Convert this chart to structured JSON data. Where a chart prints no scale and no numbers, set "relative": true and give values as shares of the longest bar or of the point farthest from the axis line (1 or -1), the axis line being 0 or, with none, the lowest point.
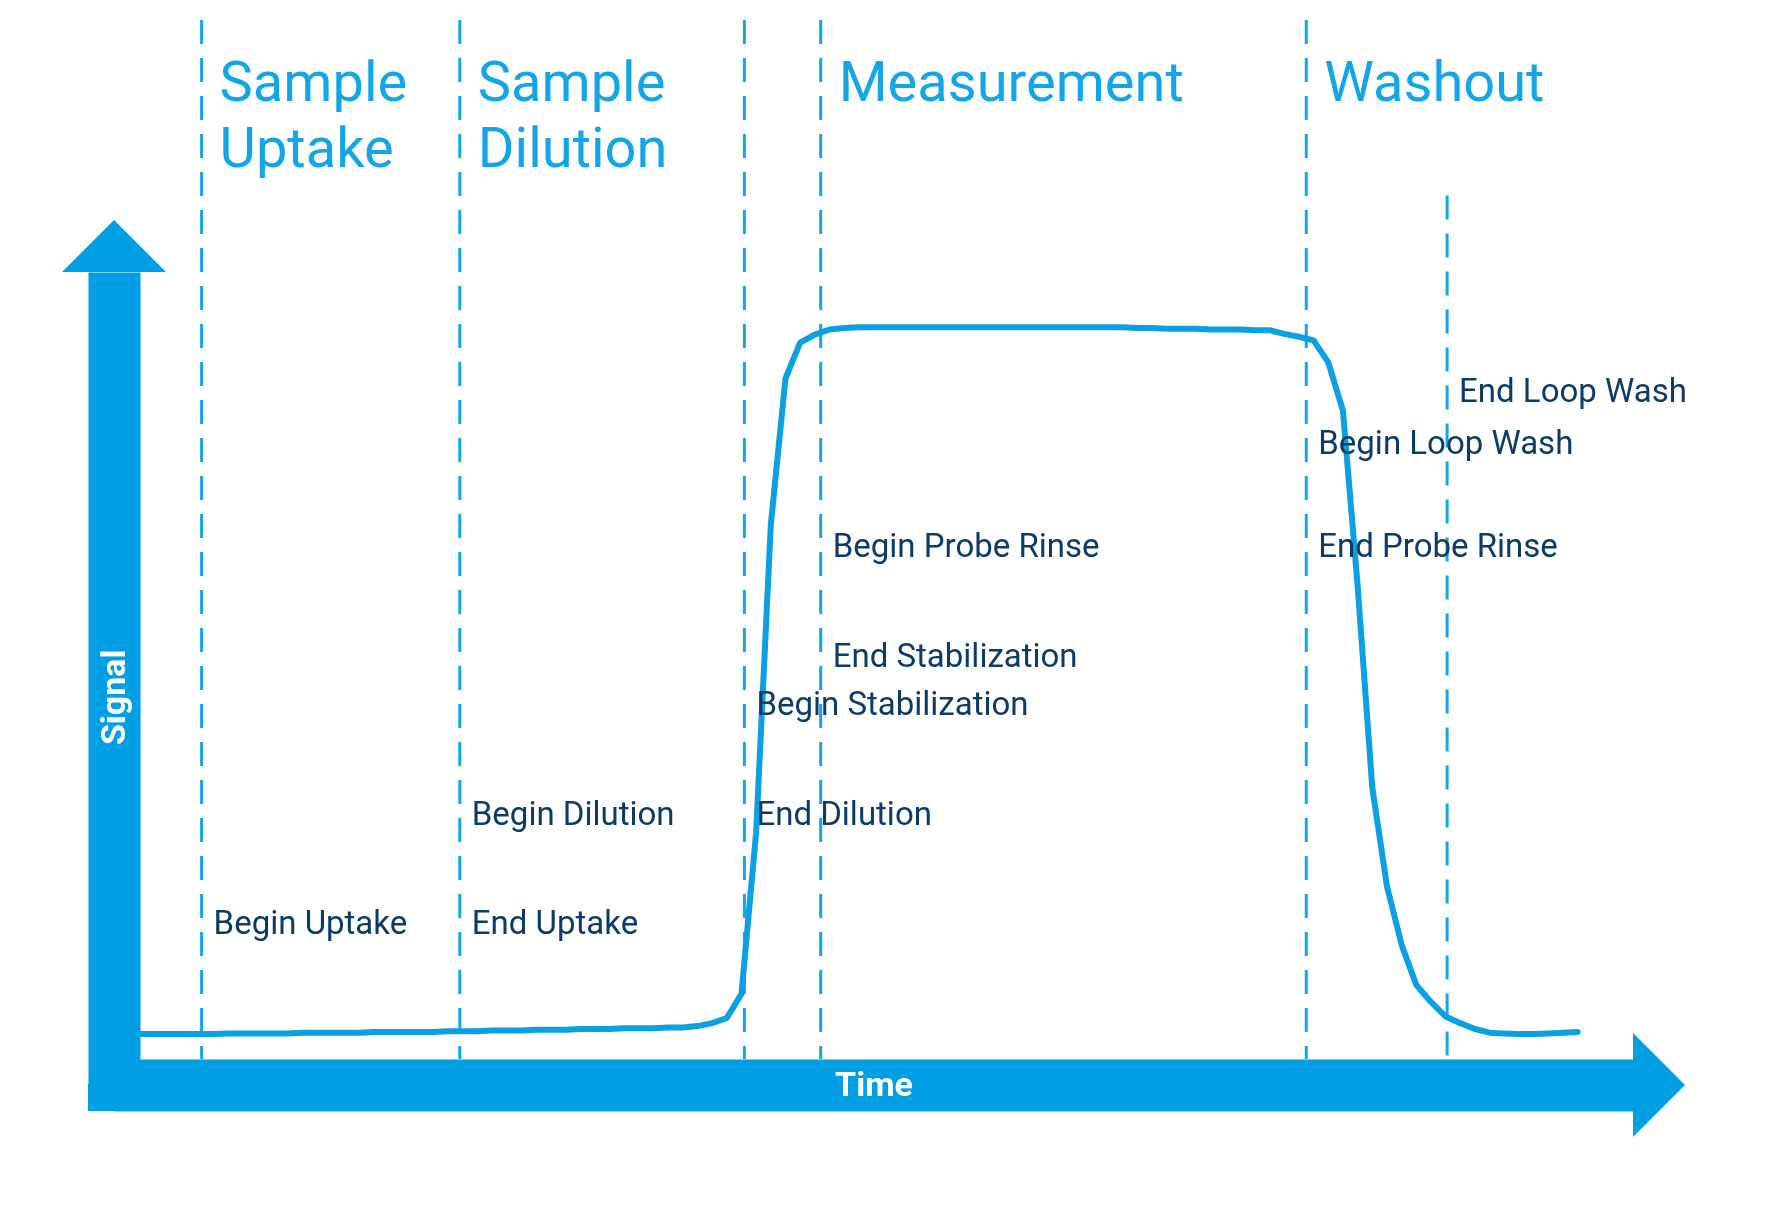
{
  "chart_data": {
    "type": "line",
    "relative": true,
    "xlabel": "Time",
    "ylabel": "Signal",
    "grid": false,
    "marker": "none",
    "line_style": "solid",
    "categories": [
      null,
      null,
      null,
      null,
      null,
      null,
      null,
      null,
      null,
      null,
      null,
      null,
      null,
      null,
      null,
      null,
      null,
      null,
      null,
      null,
      null,
      null,
      null,
      null,
      null,
      null,
      null,
      null,
      null,
      null,
      null,
      null,
      null,
      null,
      null,
      null,
      null,
      null,
      null,
      null,
      null,
      null,
      null,
      null,
      null,
      null,
      null,
      null,
      null,
      null,
      null,
      null,
      null,
      null,
      null,
      null,
      null,
      null,
      null,
      null,
      null,
      null,
      null,
      null,
      null,
      null,
      null,
      null,
      null,
      null,
      null,
      null,
      null,
      null,
      null,
      null,
      null,
      null,
      null,
      null,
      null,
      null,
      null,
      null,
      null,
      null,
      null,
      null,
      null,
      null,
      null,
      null,
      null,
      null,
      null,
      null,
      null,
      null,
      null
    ],
    "series": [
      {
        "color": "#0aa0e2",
        "values": [
          0.034,
          0.034,
          0.034,
          0.034,
          0.034,
          0.034,
          0.035,
          0.035,
          0.035,
          0.035,
          0.035,
          0.036,
          0.036,
          0.036,
          0.036,
          0.036,
          0.037,
          0.037,
          0.037,
          0.037,
          0.037,
          0.038,
          0.038,
          0.038,
          0.039,
          0.039,
          0.039,
          0.04,
          0.04,
          0.04,
          0.041,
          0.041,
          0.041,
          0.042,
          0.042,
          0.042,
          0.043,
          0.043,
          0.045,
          0.049,
          0.056,
          0.089,
          0.31,
          0.73,
          0.93,
          0.979,
          0.99,
          0.997,
          0.999,
          1,
          1,
          1,
          1,
          1,
          1,
          1,
          1,
          1,
          1,
          1,
          1,
          1,
          1,
          1,
          1,
          1,
          1,
          1,
          0.999,
          0.999,
          0.998,
          0.998,
          0.998,
          0.997,
          0.997,
          0.997,
          0.996,
          0.996,
          0.991,
          0.987,
          0.982,
          0.952,
          0.886,
          0.647,
          0.371,
          0.236,
          0.156,
          0.101,
          0.078,
          0.058,
          0.049,
          0.041,
          0.036,
          0.035,
          0.034,
          0.034,
          0.035,
          0.036,
          0.037
        ]
      }
    ],
    "annotations": [
      "Sample Uptake",
      "Sample Dilution",
      "Measurement",
      "Washout",
      "Begin Uptake",
      "End Uptake",
      "Begin Dilution",
      "End Dilution",
      "Begin Stabilization",
      "End Stabilization",
      "Begin Probe Rinse",
      "End Probe Rinse",
      "Begin Loop Wash",
      "End Loop Wash"
    ]
  }
}
